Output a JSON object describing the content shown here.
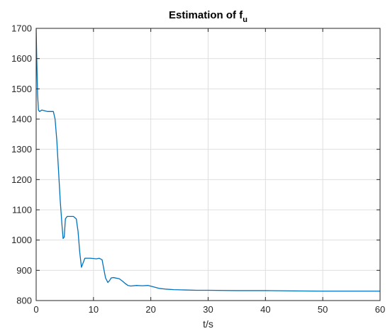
{
  "chart_data": {
    "type": "line",
    "title": "Estimation of f",
    "title_subscript": "u",
    "xlabel": "t/s",
    "ylabel": "",
    "xlim": [
      0,
      60
    ],
    "ylim": [
      800,
      1700
    ],
    "xticks": [
      0,
      10,
      20,
      30,
      40,
      50,
      60
    ],
    "yticks": [
      800,
      900,
      1000,
      1100,
      1200,
      1300,
      1400,
      1500,
      1600,
      1700
    ],
    "grid": true,
    "legend": "none",
    "series": [
      {
        "color": "#0072bd",
        "x": [
          0,
          0.1,
          0.25,
          0.4,
          0.6,
          1.0,
          2.0,
          3.0,
          3.3,
          3.6,
          3.9,
          4.2,
          4.5,
          4.7,
          4.9,
          5.1,
          5.4,
          5.8,
          6.5,
          7.0,
          7.3,
          7.6,
          7.9,
          8.2,
          8.5,
          9.5,
          10.5,
          11.0,
          11.5,
          11.8,
          12.1,
          12.5,
          12.8,
          13.1,
          13.5,
          14.5,
          15.0,
          15.5,
          16.0,
          16.5,
          17.5,
          18.5,
          19.5,
          20.5,
          21.5,
          22.5,
          24.0,
          26.0,
          28.0,
          30.0,
          35.0,
          40.0,
          45.0,
          50.0,
          55.0,
          60.0
        ],
        "y": [
          1700,
          1600,
          1480,
          1430,
          1425,
          1430,
          1425,
          1425,
          1400,
          1330,
          1230,
          1130,
          1050,
          1005,
          1010,
          1070,
          1078,
          1078,
          1078,
          1070,
          1030,
          960,
          910,
          925,
          940,
          940,
          938,
          940,
          935,
          905,
          875,
          860,
          866,
          875,
          876,
          872,
          865,
          857,
          850,
          848,
          850,
          849,
          850,
          845,
          840,
          838,
          836,
          835,
          834,
          834,
          833,
          833,
          832,
          831,
          831,
          831
        ]
      }
    ]
  }
}
